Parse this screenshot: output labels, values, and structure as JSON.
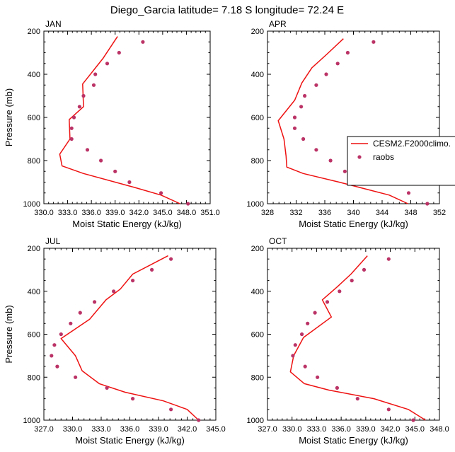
{
  "title": "Diego_Garcia  latitude= 7.18 S longitude= 72.24 E",
  "colors": {
    "model": "#ee1111",
    "obs": "#bb3366",
    "axis": "#000000"
  },
  "legend": {
    "model_label": "CESM2.F2000climo.",
    "obs_label": "raobs"
  },
  "chart_data": [
    {
      "type": "line",
      "panel": "JAN",
      "xlabel": "Moist Static Energy (kJ/kg)",
      "ylabel": "Pressure (mb)",
      "xlim": [
        330,
        351
      ],
      "xticks": [
        330,
        333,
        336,
        339,
        342,
        345,
        348,
        351
      ],
      "xtick_labels": [
        "330.0",
        "333.0",
        "336.0",
        "339.0",
        "342.0",
        "345.0",
        "348.0",
        "351.0"
      ],
      "ylim": [
        1000,
        200
      ],
      "yticks": [
        200,
        400,
        600,
        800,
        1000
      ],
      "ytick_labels": [
        "200",
        "400",
        "600",
        "800",
        "1000"
      ],
      "series": [
        {
          "name": "CESM2.F2000climo.",
          "kind": "line",
          "x": [
            339.3,
            337.5,
            336.2,
            334.9,
            335.0,
            333.2,
            333.3,
            332.0,
            332.3,
            335.0,
            341.5,
            344.8,
            347.2
          ],
          "y": [
            225,
            325,
            385,
            445,
            550,
            610,
            700,
            770,
            825,
            860,
            925,
            960,
            1000
          ]
        },
        {
          "name": "raobs",
          "kind": "scatter",
          "x": [
            342.5,
            339.5,
            338.0,
            336.5,
            336.3,
            335.0,
            334.5,
            333.8,
            333.5,
            333.5,
            335.5,
            337.2,
            339.0,
            340.8,
            344.8,
            348.2
          ],
          "y": [
            250,
            300,
            350,
            400,
            450,
            500,
            550,
            600,
            650,
            700,
            750,
            800,
            850,
            900,
            950,
            1000
          ]
        }
      ]
    },
    {
      "type": "line",
      "panel": "APR",
      "xlabel": "Moist Static Energy (kJ/kg)",
      "ylabel": "Pressure (mb)",
      "xlim": [
        328,
        352
      ],
      "xticks": [
        328,
        332,
        336,
        340,
        344,
        348,
        352
      ],
      "xtick_labels": [
        "328",
        "332",
        "336",
        "340",
        "344",
        "348",
        "352"
      ],
      "ylim": [
        1000,
        200
      ],
      "yticks": [
        200,
        400,
        600,
        800,
        1000
      ],
      "ytick_labels": [
        "200",
        "400",
        "600",
        "800",
        "1000"
      ],
      "series": [
        {
          "name": "CESM2.F2000climo.",
          "kind": "line",
          "x": [
            338.6,
            336.2,
            334.2,
            332.8,
            331.8,
            329.5,
            330.3,
            330.6,
            330.7,
            333.0,
            338.0,
            345.0,
            347.6
          ],
          "y": [
            235,
            310,
            370,
            440,
            520,
            615,
            700,
            780,
            830,
            860,
            900,
            960,
            1000
          ]
        },
        {
          "name": "raobs",
          "kind": "scatter",
          "x": [
            342.8,
            339.2,
            337.8,
            336.2,
            334.8,
            333.2,
            332.7,
            331.8,
            331.8,
            333.0,
            334.8,
            336.8,
            338.8,
            342.7,
            347.7,
            350.3
          ],
          "y": [
            250,
            300,
            350,
            400,
            450,
            500,
            550,
            600,
            650,
            700,
            750,
            800,
            850,
            900,
            950,
            1000
          ]
        }
      ]
    },
    {
      "type": "line",
      "panel": "JUL",
      "xlabel": "Moist Static Energy (kJ/kg)",
      "ylabel": "Pressure (mb)",
      "xlim": [
        327,
        345
      ],
      "xticks": [
        327,
        330,
        333,
        336,
        339,
        342,
        345
      ],
      "xtick_labels": [
        "327.0",
        "330.0",
        "333.0",
        "336.0",
        "339.0",
        "342.0",
        "345.0"
      ],
      "ylim": [
        1000,
        200
      ],
      "yticks": [
        200,
        400,
        600,
        800,
        1000
      ],
      "ytick_labels": [
        "200",
        "400",
        "600",
        "800",
        "1000"
      ],
      "series": [
        {
          "name": "CESM2.F2000climo.",
          "kind": "line",
          "x": [
            340.0,
            336.3,
            335.0,
            333.5,
            331.8,
            328.8,
            330.3,
            331.0,
            332.8,
            335.5,
            339.5,
            342.0,
            343.2
          ],
          "y": [
            235,
            320,
            390,
            440,
            530,
            620,
            700,
            770,
            830,
            870,
            910,
            950,
            1000
          ]
        },
        {
          "name": "raobs",
          "kind": "scatter",
          "x": [
            340.3,
            338.3,
            336.3,
            334.3,
            332.3,
            330.8,
            329.8,
            328.8,
            328.1,
            327.8,
            328.4,
            330.3,
            333.6,
            336.3,
            340.3,
            343.2
          ],
          "y": [
            250,
            300,
            350,
            400,
            450,
            500,
            550,
            600,
            650,
            700,
            750,
            800,
            850,
            900,
            950,
            1000
          ]
        }
      ]
    },
    {
      "type": "line",
      "panel": "OCT",
      "xlabel": "Moist Static Energy (kJ/kg)",
      "ylabel": "Pressure (mb)",
      "xlim": [
        327,
        348
      ],
      "xticks": [
        327,
        330,
        333,
        336,
        339,
        342,
        345,
        348
      ],
      "xtick_labels": [
        "327.0",
        "330.0",
        "333.0",
        "336.0",
        "339.0",
        "342.0",
        "345.0",
        "348.0"
      ],
      "ylim": [
        1000,
        200
      ],
      "yticks": [
        200,
        400,
        600,
        800,
        1000
      ],
      "ytick_labels": [
        "200",
        "400",
        "600",
        "800",
        "1000"
      ],
      "series": [
        {
          "name": "CESM2.F2000climo.",
          "kind": "line",
          "x": [
            339.2,
            337.2,
            335.5,
            333.7,
            334.8,
            331.4,
            330.2,
            329.8,
            331.5,
            334.5,
            340.0,
            344.2,
            346.3
          ],
          "y": [
            235,
            320,
            380,
            440,
            520,
            615,
            700,
            775,
            830,
            860,
            900,
            950,
            1000
          ]
        },
        {
          "name": "raobs",
          "kind": "scatter",
          "x": [
            341.8,
            338.8,
            337.3,
            335.8,
            334.3,
            332.8,
            331.9,
            331.2,
            330.4,
            330.1,
            331.6,
            333.1,
            335.5,
            338.0,
            341.8,
            344.8
          ],
          "y": [
            250,
            300,
            350,
            400,
            450,
            500,
            550,
            600,
            650,
            700,
            750,
            800,
            850,
            900,
            950,
            1000
          ]
        }
      ]
    }
  ]
}
